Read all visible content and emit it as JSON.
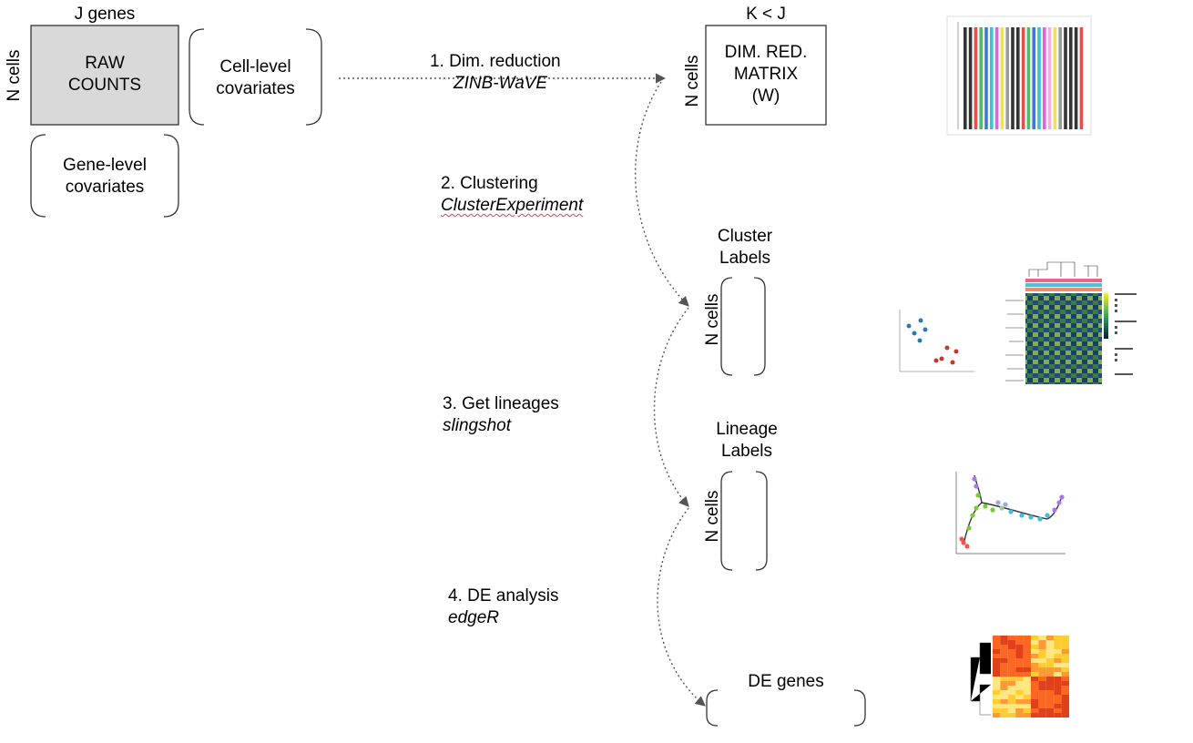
{
  "raw": {
    "top_label": "J genes",
    "side_label": "N cells",
    "box_line1": "RAW",
    "box_line2": "COUNTS"
  },
  "cell_cov": {
    "line1": "Cell-level",
    "line2": "covariates"
  },
  "gene_cov": {
    "line1": "Gene-level",
    "line2": "covariates"
  },
  "steps": [
    {
      "label": "1. Dim. reduction",
      "method": "ZINB-WaVE"
    },
    {
      "label": "2. Clustering",
      "method": "ClusterExperiment"
    },
    {
      "label": "3. Get lineages",
      "method": "slingshot"
    },
    {
      "label": "4. DE analysis",
      "method": "edgeR"
    }
  ],
  "dimred": {
    "top_label": "K < J",
    "side_label": "N cells",
    "line1": "DIM. RED.",
    "line2": "MATRIX",
    "line3": "(W)"
  },
  "cluster": {
    "line1": "Cluster",
    "line2": "Labels",
    "side_label": "N cells"
  },
  "lineage": {
    "line1": "Lineage",
    "line2": "Labels",
    "side_label": "N cells"
  },
  "de": {
    "label": "DE genes"
  },
  "colors": {
    "raw_fill": "#d9d9d9",
    "arrow": "#555555",
    "spell_underline": "#e0453b"
  }
}
